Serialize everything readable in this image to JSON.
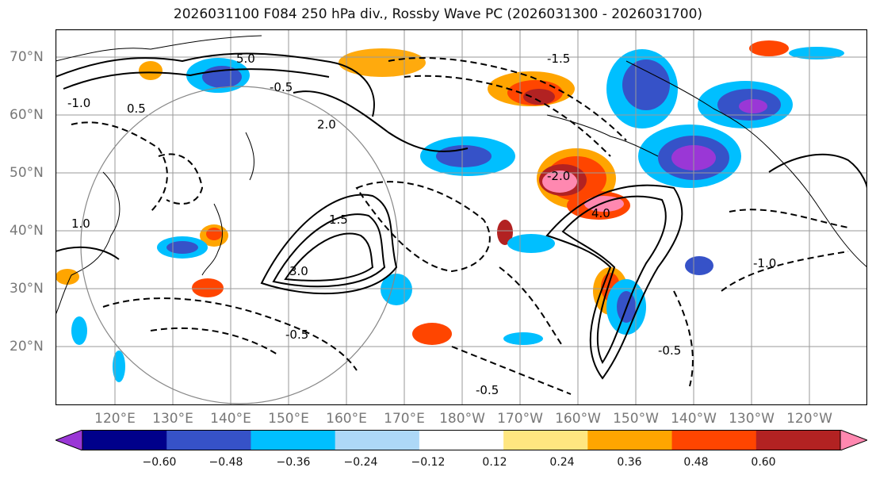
{
  "title": "2026031100 F084 250 hPa div., Rossby Wave PC (2026031300 - 2026031700)",
  "lat_labels": [
    "70°N",
    "60°N",
    "50°N",
    "40°N",
    "30°N",
    "20°N"
  ],
  "lon_labels": [
    "120°E",
    "130°E",
    "140°E",
    "150°E",
    "160°E",
    "170°E",
    "180°W",
    "170°W",
    "160°W",
    "150°W",
    "140°W",
    "130°W",
    "120°W"
  ],
  "contour_labels": [
    "0.5",
    "1.0",
    "1.5",
    "2.0",
    "3.0",
    "4.0",
    "5.0",
    "-0.5",
    "-1.0",
    "-1.5",
    "-2.0",
    "-0.5",
    "-0.5",
    "-1.0",
    "-0.5"
  ],
  "colorbar": {
    "ticks": [
      "−0.60",
      "−0.48",
      "−0.36",
      "−0.24",
      "−0.12",
      "0.12",
      "0.24",
      "0.36",
      "0.48",
      "0.60"
    ],
    "colors": [
      "#9a37d6",
      "#00008b",
      "#3652c8",
      "#00bfff",
      "#add8f7",
      "#ffffff",
      "#ffe680",
      "#ffa500",
      "#ff4500",
      "#b22222",
      "#ff88b0"
    ]
  },
  "legend": {
    "levels": [
      -0.6,
      -0.48,
      -0.36,
      -0.24,
      -0.12,
      0.12,
      0.24,
      0.36,
      0.48,
      0.6
    ]
  }
}
